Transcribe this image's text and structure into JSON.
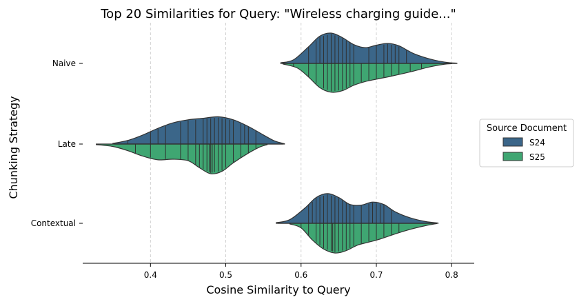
{
  "chart_data": {
    "type": "violin",
    "title": "Top 20 Similarities for Query: \"Wireless charging guide...\"",
    "xlabel": "Cosine Similarity to Query",
    "ylabel": "Chunking Strategy",
    "xlim": [
      0.31,
      0.83
    ],
    "xticks": [
      0.4,
      0.5,
      0.6,
      0.7,
      0.8
    ],
    "xtick_labels": [
      "0.4",
      "0.5",
      "0.6",
      "0.7",
      "0.8"
    ],
    "categories": [
      "Naive",
      "Late",
      "Contextual"
    ],
    "grid": "vertical dashed",
    "split": true,
    "inner": "stick",
    "legend": {
      "title": "Source Document",
      "placement": "center-right outside"
    },
    "series": [
      {
        "name": "S24",
        "color": "#3b6689",
        "side": "upper",
        "values": {
          "Naive": [
            0.61,
            0.62,
            0.625,
            0.63,
            0.635,
            0.64,
            0.645,
            0.65,
            0.655,
            0.66,
            0.665,
            0.67,
            0.69,
            0.7,
            0.71,
            0.715,
            0.72,
            0.725,
            0.73,
            0.74
          ],
          "Late": [
            0.37,
            0.4,
            0.41,
            0.42,
            0.44,
            0.45,
            0.46,
            0.47,
            0.475,
            0.48,
            0.485,
            0.49,
            0.495,
            0.5,
            0.505,
            0.51,
            0.52,
            0.525,
            0.53,
            0.54
          ],
          "Contextual": [
            0.61,
            0.615,
            0.62,
            0.625,
            0.63,
            0.635,
            0.64,
            0.645,
            0.65,
            0.655,
            0.66,
            0.665,
            0.67,
            0.68,
            0.69,
            0.695,
            0.7,
            0.705,
            0.71,
            0.72
          ]
        }
      },
      {
        "name": "S25",
        "color": "#3fa672",
        "side": "lower",
        "values": {
          "Naive": [
            0.59,
            0.61,
            0.62,
            0.63,
            0.635,
            0.64,
            0.645,
            0.65,
            0.655,
            0.66,
            0.665,
            0.67,
            0.68,
            0.69,
            0.7,
            0.71,
            0.72,
            0.73,
            0.745,
            0.76
          ],
          "Late": [
            0.38,
            0.4,
            0.42,
            0.44,
            0.45,
            0.46,
            0.465,
            0.47,
            0.475,
            0.478,
            0.48,
            0.482,
            0.485,
            0.49,
            0.495,
            0.5,
            0.51,
            0.52,
            0.53,
            0.54
          ],
          "Contextual": [
            0.6,
            0.61,
            0.62,
            0.625,
            0.63,
            0.635,
            0.64,
            0.642,
            0.645,
            0.65,
            0.655,
            0.66,
            0.665,
            0.67,
            0.68,
            0.69,
            0.7,
            0.71,
            0.72,
            0.73
          ]
        }
      }
    ],
    "curves": {
      "Naive": {
        "upper": [
          [
            0.573,
            0.02
          ],
          [
            0.59,
            0.12
          ],
          [
            0.61,
            0.55
          ],
          [
            0.625,
            0.9
          ],
          [
            0.64,
            1.0
          ],
          [
            0.655,
            0.85
          ],
          [
            0.67,
            0.62
          ],
          [
            0.685,
            0.52
          ],
          [
            0.7,
            0.6
          ],
          [
            0.715,
            0.66
          ],
          [
            0.73,
            0.58
          ],
          [
            0.75,
            0.32
          ],
          [
            0.775,
            0.12
          ],
          [
            0.795,
            0.03
          ],
          [
            0.807,
            0.01
          ]
        ],
        "lower": [
          [
            0.576,
            0.02
          ],
          [
            0.595,
            0.15
          ],
          [
            0.61,
            0.45
          ],
          [
            0.625,
            0.8
          ],
          [
            0.64,
            0.95
          ],
          [
            0.655,
            0.9
          ],
          [
            0.67,
            0.72
          ],
          [
            0.685,
            0.6
          ],
          [
            0.7,
            0.52
          ],
          [
            0.72,
            0.42
          ],
          [
            0.745,
            0.28
          ],
          [
            0.77,
            0.12
          ],
          [
            0.79,
            0.03
          ],
          [
            0.8,
            0.01
          ]
        ]
      },
      "Late": {
        "upper": [
          [
            0.35,
            0.02
          ],
          [
            0.37,
            0.12
          ],
          [
            0.39,
            0.3
          ],
          [
            0.41,
            0.52
          ],
          [
            0.43,
            0.7
          ],
          [
            0.45,
            0.8
          ],
          [
            0.47,
            0.85
          ],
          [
            0.49,
            0.9
          ],
          [
            0.51,
            0.8
          ],
          [
            0.53,
            0.58
          ],
          [
            0.55,
            0.3
          ],
          [
            0.565,
            0.1
          ],
          [
            0.578,
            0.01
          ]
        ],
        "lower": [
          [
            0.328,
            0.02
          ],
          [
            0.35,
            0.08
          ],
          [
            0.37,
            0.22
          ],
          [
            0.39,
            0.4
          ],
          [
            0.41,
            0.52
          ],
          [
            0.43,
            0.5
          ],
          [
            0.45,
            0.55
          ],
          [
            0.465,
            0.78
          ],
          [
            0.48,
            0.98
          ],
          [
            0.495,
            0.9
          ],
          [
            0.51,
            0.62
          ],
          [
            0.53,
            0.3
          ],
          [
            0.545,
            0.1
          ],
          [
            0.555,
            0.02
          ]
        ]
      },
      "Contextual": {
        "upper": [
          [
            0.567,
            0.02
          ],
          [
            0.585,
            0.12
          ],
          [
            0.605,
            0.5
          ],
          [
            0.62,
            0.85
          ],
          [
            0.635,
            0.98
          ],
          [
            0.65,
            0.85
          ],
          [
            0.665,
            0.62
          ],
          [
            0.68,
            0.6
          ],
          [
            0.695,
            0.7
          ],
          [
            0.71,
            0.62
          ],
          [
            0.725,
            0.38
          ],
          [
            0.745,
            0.18
          ],
          [
            0.765,
            0.06
          ],
          [
            0.782,
            0.01
          ]
        ],
        "lower": [
          [
            0.585,
            0.02
          ],
          [
            0.6,
            0.15
          ],
          [
            0.615,
            0.55
          ],
          [
            0.63,
            0.85
          ],
          [
            0.645,
            0.98
          ],
          [
            0.66,
            0.9
          ],
          [
            0.675,
            0.72
          ],
          [
            0.69,
            0.62
          ],
          [
            0.705,
            0.52
          ],
          [
            0.725,
            0.35
          ],
          [
            0.745,
            0.2
          ],
          [
            0.765,
            0.08
          ],
          [
            0.78,
            0.01
          ]
        ]
      }
    }
  }
}
